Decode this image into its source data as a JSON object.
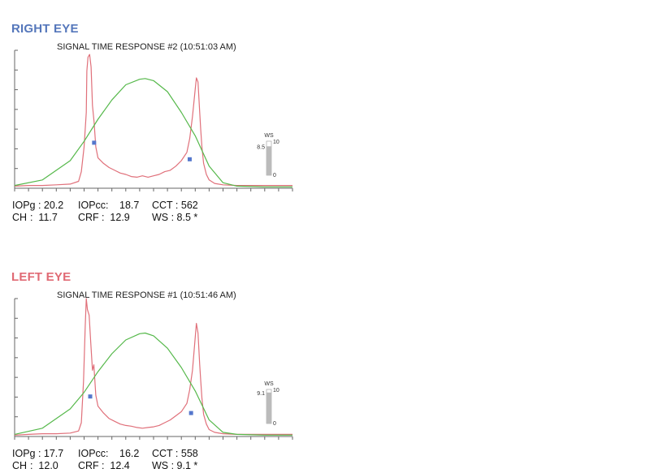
{
  "colors": {
    "right_eye_title": "#5577bb",
    "left_eye_title": "#e06a74",
    "signal": "#e0707a",
    "pressure": "#55b84a",
    "marker": "#5577cc",
    "axis": "#666666",
    "ws_bar": "#bbbbbb"
  },
  "chart_data": [
    {
      "type": "line",
      "eye": "RIGHT EYE",
      "title": "SIGNAL TIME RESPONSE #2 (10:51:03 AM)",
      "xlabel": "",
      "ylabel": "",
      "xlim": [
        0,
        100
      ],
      "ylim": [
        0,
        100
      ],
      "grid": false,
      "series": [
        {
          "role": "applanation-signal",
          "x": [
            0,
            5,
            10,
            15,
            20,
            23,
            24,
            25,
            25.8,
            26,
            26.4,
            27,
            27.5,
            28,
            28.6,
            29.2,
            30,
            32,
            34,
            36,
            38,
            40,
            42,
            44,
            46,
            48,
            50,
            52,
            54,
            56,
            58,
            60,
            62,
            63,
            64,
            65,
            65.4,
            66,
            66.6,
            67,
            67.4,
            68,
            69,
            70,
            72,
            75,
            80,
            90,
            100
          ],
          "y": [
            1.5,
            2,
            2,
            2.5,
            3,
            5,
            12,
            30,
            55,
            85,
            95,
            97,
            88,
            60,
            48,
            30,
            22,
            18,
            15,
            13,
            11,
            10,
            8.5,
            8,
            9,
            8,
            9,
            10,
            12,
            13,
            16,
            20,
            26,
            36,
            52,
            72,
            80,
            77,
            55,
            42,
            30,
            18,
            10,
            6,
            3.5,
            2.5,
            2,
            2,
            2
          ]
        },
        {
          "role": "pressure",
          "x": [
            0,
            10,
            20,
            25,
            30,
            35,
            40,
            45,
            47,
            50,
            55,
            60,
            65,
            70,
            75,
            80,
            90,
            100
          ],
          "y": [
            2,
            6,
            20,
            34,
            50,
            64,
            75,
            79,
            79.5,
            78,
            70,
            55,
            38,
            16,
            4,
            1.5,
            1,
            1
          ]
        }
      ],
      "markers": [
        {
          "x": 28.6,
          "y": 33
        },
        {
          "x": 63,
          "y": 21
        }
      ],
      "ws_gauge": {
        "label": "WS",
        "value": "8.5",
        "max": "10",
        "min": "0",
        "level": 0.85
      }
    },
    {
      "type": "line",
      "eye": "LEFT EYE",
      "title": "SIGNAL TIME RESPONSE #1 (10:51:46 AM)",
      "xlabel": "",
      "ylabel": "",
      "xlim": [
        0,
        100
      ],
      "ylim": [
        0,
        100
      ],
      "grid": false,
      "series": [
        {
          "role": "applanation-signal",
          "x": [
            0,
            5,
            10,
            15,
            20,
            23,
            24,
            24.8,
            25.4,
            25.8,
            26.2,
            26.8,
            27.4,
            28,
            28.5,
            29.2,
            30,
            32,
            34,
            36,
            38,
            40,
            42,
            44,
            46,
            48,
            50,
            52,
            54,
            56,
            58,
            60,
            62,
            63,
            64,
            65,
            65.4,
            66,
            66.6,
            67,
            67.4,
            68,
            69,
            70,
            72,
            75,
            80,
            90,
            100
          ],
          "y": [
            1,
            1.5,
            2,
            2,
            2.5,
            4,
            10,
            40,
            80,
            100,
            92,
            88,
            68,
            48,
            52,
            30,
            22,
            17,
            13,
            11,
            9,
            8,
            7.5,
            6.5,
            6,
            6.5,
            7,
            8,
            10,
            12,
            15,
            18,
            24,
            34,
            48,
            72,
            82,
            75,
            52,
            40,
            28,
            16,
            9,
            5,
            3,
            2,
            1.5,
            1.5,
            1.5
          ]
        },
        {
          "role": "pressure",
          "x": [
            0,
            10,
            20,
            25,
            30,
            35,
            40,
            45,
            47,
            50,
            55,
            60,
            65,
            70,
            75,
            80,
            90,
            100
          ],
          "y": [
            1.5,
            6,
            20,
            32,
            47,
            60,
            70,
            74.5,
            75,
            73,
            64,
            50,
            33,
            12,
            3,
            1.5,
            1,
            1
          ]
        }
      ],
      "markers": [
        {
          "x": 27.2,
          "y": 29
        },
        {
          "x": 63.5,
          "y": 17
        }
      ],
      "ws_gauge": {
        "label": "WS",
        "value": "9.1",
        "max": "10",
        "min": "0",
        "level": 0.91
      }
    }
  ],
  "right_eye": {
    "title": "RIGHT EYE",
    "metrics": {
      "iopg_label": "IOPg : 20.2",
      "iopcc_label": "IOPcc:",
      "iopcc_value": "18.7",
      "cct_label": "CCT : 562",
      "ch_label": "CH",
      "ch_value": ":  11.7",
      "crf_label": "CRF",
      "crf_value": ":  12.9",
      "ws_label": "WS : 8.5 *"
    }
  },
  "left_eye": {
    "title": "LEFT EYE",
    "metrics": {
      "iopg_label": "IOPg : 17.7",
      "iopcc_label": "IOPcc:",
      "iopcc_value": "16.2",
      "cct_label": "CCT : 558",
      "ch_label": "CH",
      "ch_value": ":  12.0",
      "crf_label": "CRF",
      "crf_value": ":  12.4",
      "ws_label": "WS : 9.1 *"
    }
  }
}
